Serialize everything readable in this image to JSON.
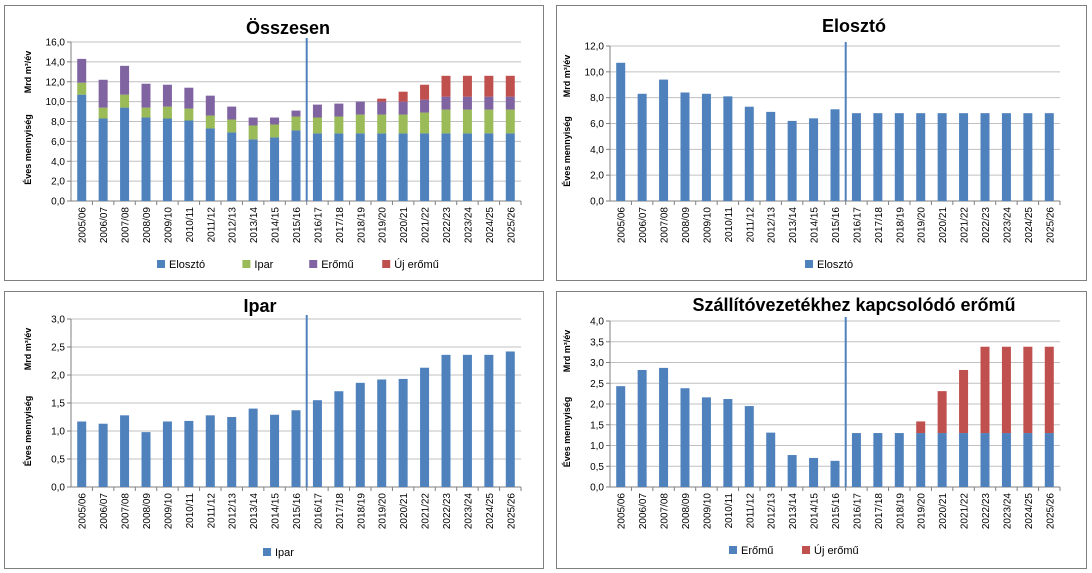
{
  "colors": {
    "elosztó": "#4F81BD",
    "ipar": "#9BBB59",
    "erőmű": "#8064A2",
    "új erőmű": "#C0504D",
    "marker": "#4F81BD",
    "grid": "#c0c0c0"
  },
  "y_unit_label": "Mrd  m³/év",
  "y_label": "Éves mennyiség",
  "categories": [
    "2005/06",
    "2006/07",
    "2007/08",
    "2008/09",
    "2009/10",
    "2010/11",
    "2011/12",
    "2012/13",
    "2013/14",
    "2014/15",
    "2015/16",
    "2016/17",
    "2017/18",
    "2018/19",
    "2019/20",
    "2020/21",
    "2021/22",
    "2022/23",
    "2023/24",
    "2024/25",
    "2025/26"
  ],
  "chart_data": [
    {
      "type": "bar",
      "stacked": true,
      "title": "Összesen",
      "ylabel": "Éves mennyiség",
      "yunit": "Mrd  m³/év",
      "ylim": [
        0,
        16
      ],
      "yticks": [
        "0,0",
        "2,0",
        "4,0",
        "6,0",
        "8,0",
        "10,0",
        "12,0",
        "14,0",
        "16,0"
      ],
      "grid": true,
      "legend": "bottom",
      "marker_after_category": "2015/16",
      "series": [
        {
          "name": "Elosztó",
          "color_key": "elosztó",
          "values": [
            10.7,
            8.3,
            9.4,
            8.4,
            8.3,
            8.1,
            7.3,
            6.9,
            6.2,
            6.4,
            7.1,
            6.8,
            6.8,
            6.8,
            6.8,
            6.8,
            6.8,
            6.8,
            6.8,
            6.8,
            6.8
          ]
        },
        {
          "name": "Ipar",
          "color_key": "ipar",
          "values": [
            1.2,
            1.1,
            1.3,
            1.0,
            1.2,
            1.2,
            1.3,
            1.3,
            1.4,
            1.3,
            1.4,
            1.6,
            1.7,
            1.9,
            1.9,
            1.9,
            2.1,
            2.4,
            2.4,
            2.4,
            2.4
          ]
        },
        {
          "name": "Erőmű",
          "color_key": "erőmű",
          "values": [
            2.4,
            2.8,
            2.9,
            2.4,
            2.2,
            2.1,
            2.0,
            1.3,
            0.8,
            0.7,
            0.6,
            1.3,
            1.3,
            1.3,
            1.3,
            1.3,
            1.3,
            1.3,
            1.3,
            1.3,
            1.3
          ]
        },
        {
          "name": "Új erőmű",
          "color_key": "új erőmű",
          "values": [
            0,
            0,
            0,
            0,
            0,
            0,
            0,
            0,
            0,
            0,
            0,
            0,
            0,
            0,
            0.3,
            1.0,
            1.5,
            2.1,
            2.1,
            2.1,
            2.1
          ]
        }
      ]
    },
    {
      "type": "bar",
      "stacked": true,
      "title": "Elosztó",
      "ylabel": "Éves mennyiség",
      "yunit": "Mrd  m³/év",
      "ylim": [
        0,
        12
      ],
      "yticks": [
        "0,0",
        "2,0",
        "4,0",
        "6,0",
        "8,0",
        "10,0",
        "12,0"
      ],
      "grid": true,
      "legend": "bottom",
      "marker_after_category": "2015/16",
      "series": [
        {
          "name": "Elosztó",
          "color_key": "elosztó",
          "values": [
            10.7,
            8.3,
            9.4,
            8.4,
            8.3,
            8.1,
            7.3,
            6.9,
            6.2,
            6.4,
            7.1,
            6.8,
            6.8,
            6.8,
            6.8,
            6.8,
            6.8,
            6.8,
            6.8,
            6.8,
            6.8
          ]
        }
      ]
    },
    {
      "type": "bar",
      "stacked": true,
      "title": "Ipar",
      "ylabel": "Éves mennyiség",
      "yunit": "Mrd  m³/év",
      "ylim": [
        0,
        3
      ],
      "yticks": [
        "0,0",
        "0,5",
        "1,0",
        "1,5",
        "2,0",
        "2,5",
        "3,0"
      ],
      "grid": true,
      "legend": "bottom",
      "marker_after_category": "2015/16",
      "series": [
        {
          "name": "Ipar",
          "color_key": "elosztó",
          "values": [
            1.17,
            1.13,
            1.28,
            0.98,
            1.17,
            1.18,
            1.28,
            1.25,
            1.4,
            1.29,
            1.37,
            1.55,
            1.71,
            1.86,
            1.92,
            1.93,
            2.13,
            2.36,
            2.36,
            2.36,
            2.42
          ]
        }
      ]
    },
    {
      "type": "bar",
      "stacked": true,
      "title": "Szállítóvezetékhez kapcsolódó erőmű",
      "ylabel": "Éves mennyiség",
      "yunit": "Mrd  m³/év",
      "ylim": [
        0,
        4
      ],
      "yticks": [
        "0,0",
        "0,5",
        "1,0",
        "1,5",
        "2,0",
        "2,5",
        "3,0",
        "3,5",
        "4,0"
      ],
      "grid": true,
      "legend": "bottom",
      "marker_after_category": "2015/16",
      "series": [
        {
          "name": "Erőmű",
          "color_key": "elosztó",
          "values": [
            2.43,
            2.82,
            2.87,
            2.38,
            2.16,
            2.12,
            1.95,
            1.31,
            0.77,
            0.7,
            0.63,
            1.3,
            1.3,
            1.3,
            1.3,
            1.3,
            1.3,
            1.3,
            1.3,
            1.3,
            1.3
          ]
        },
        {
          "name": "Új erőmű",
          "color_key": "új erőmű",
          "values": [
            0,
            0,
            0,
            0,
            0,
            0,
            0,
            0,
            0,
            0,
            0,
            0,
            0,
            0,
            0.28,
            1.01,
            1.52,
            2.08,
            2.08,
            2.08,
            2.08
          ]
        }
      ]
    }
  ]
}
